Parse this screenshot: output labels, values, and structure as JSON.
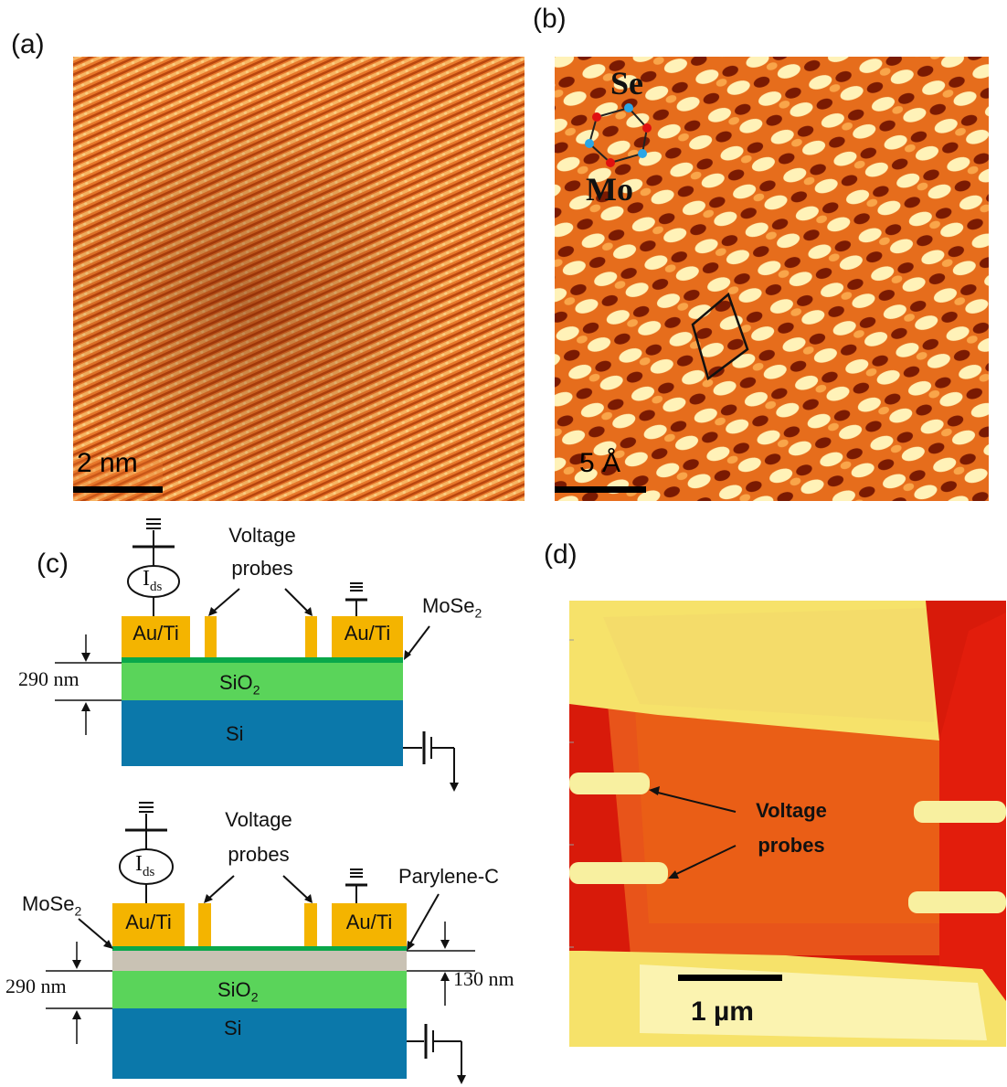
{
  "panels": {
    "a": {
      "label": "(a)",
      "scale_bar": "2 nm"
    },
    "b": {
      "label": "(b)",
      "atom_top": "Se",
      "atom_bottom": "Mo",
      "scale_bar": "5 Å"
    },
    "c": {
      "label": "(c)",
      "top": {
        "current_label": "I",
        "current_sub": "ds",
        "voltage_probes_line1": "Voltage",
        "voltage_probes_line2": "probes",
        "contact_left": "Au/Ti",
        "contact_right": "Au/Ti",
        "material": "MoSe",
        "material_sub": "2",
        "oxide": "SiO",
        "oxide_sub": "2",
        "substrate": "Si",
        "thickness": "290 nm"
      },
      "bottom": {
        "current_label": "I",
        "current_sub": "ds",
        "voltage_probes_line1": "Voltage",
        "voltage_probes_line2": "probes",
        "contact_left": "Au/Ti",
        "contact_right": "Au/Ti",
        "material": "MoSe",
        "material_sub": "2",
        "encapsulation": "Parylene-C",
        "oxide": "SiO",
        "oxide_sub": "2",
        "substrate": "Si",
        "thickness": "290 nm",
        "parylene_thickness": "130 nm"
      }
    },
    "d": {
      "label": "(d)",
      "voltage_probes_line1": "Voltage",
      "voltage_probes_line2": "probes",
      "scale_bar": "1 µm"
    }
  },
  "colors": {
    "gold": "#f4b400",
    "mose2_green": "#0aa84a",
    "sio2_green": "#5ad45a",
    "si_blue": "#0b78aa",
    "parylene_gray": "#c9c2b4",
    "afm_red": "#d81a0a",
    "afm_orange": "#e85a14",
    "afm_yellow": "#f6e26a"
  }
}
